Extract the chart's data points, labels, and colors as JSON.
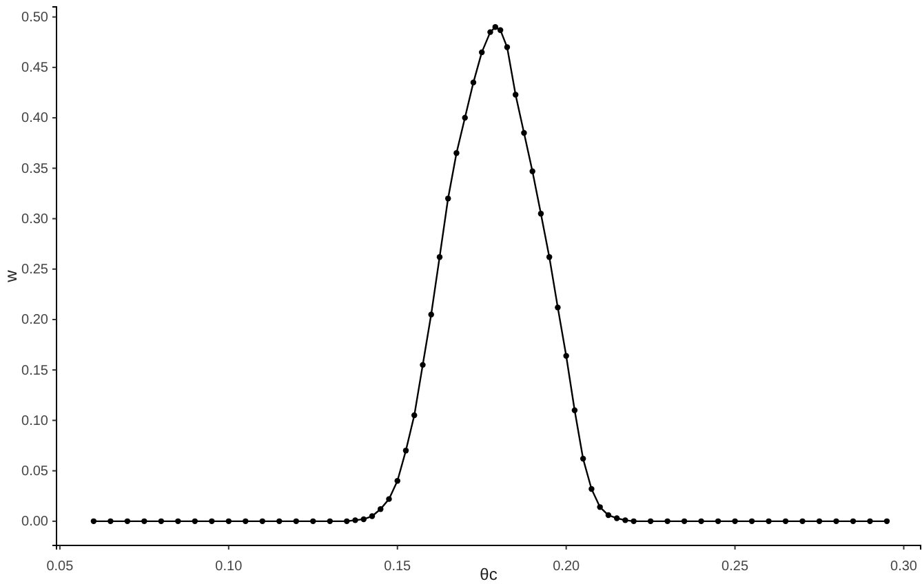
{
  "chart_data": {
    "type": "line",
    "xlabel": "θc",
    "ylabel": "w",
    "xlim": [
      0.049,
      0.305
    ],
    "ylim": [
      -0.024,
      0.51
    ],
    "xticks": [
      {
        "value": 0.05,
        "label": "0.05"
      },
      {
        "value": 0.1,
        "label": "0.10"
      },
      {
        "value": 0.15,
        "label": "0.15"
      },
      {
        "value": 0.2,
        "label": "0.20"
      },
      {
        "value": 0.25,
        "label": "0.25"
      },
      {
        "value": 0.3,
        "label": "0.30"
      }
    ],
    "yticks": [
      {
        "value": 0,
        "label": "0.00"
      },
      {
        "value": 0.05,
        "label": "0.05"
      },
      {
        "value": 0.1,
        "label": "0.10"
      },
      {
        "value": 0.15,
        "label": "0.15"
      },
      {
        "value": 0.2,
        "label": "0.20"
      },
      {
        "value": 0.25,
        "label": "0.25"
      },
      {
        "value": 0.3,
        "label": "0.30"
      },
      {
        "value": 0.35,
        "label": "0.35"
      },
      {
        "value": 0.4,
        "label": "0.40"
      },
      {
        "value": 0.45,
        "label": "0.45"
      },
      {
        "value": 0.5,
        "label": "0.50"
      }
    ],
    "grid": false,
    "marker": "circle",
    "line_style": "solid",
    "series": [
      {
        "color": "#000000",
        "x": [
          0.06,
          0.065,
          0.07,
          0.075,
          0.08,
          0.085,
          0.09,
          0.095,
          0.1,
          0.105,
          0.11,
          0.115,
          0.12,
          0.125,
          0.13,
          0.135,
          0.1375,
          0.14,
          0.1425,
          0.145,
          0.1475,
          0.15,
          0.1525,
          0.155,
          0.1575,
          0.16,
          0.1625,
          0.165,
          0.1675,
          0.17,
          0.1725,
          0.175,
          0.1775,
          0.179,
          0.1805,
          0.1825,
          0.185,
          0.1875,
          0.19,
          0.1925,
          0.195,
          0.1975,
          0.2,
          0.2025,
          0.205,
          0.2075,
          0.21,
          0.2125,
          0.215,
          0.2175,
          0.22,
          0.225,
          0.23,
          0.235,
          0.24,
          0.245,
          0.25,
          0.255,
          0.26,
          0.265,
          0.27,
          0.275,
          0.28,
          0.285,
          0.29,
          0.295
        ],
        "values": [
          0,
          0,
          0,
          0,
          0,
          0,
          0,
          0,
          0,
          0,
          0,
          0,
          0,
          0,
          0,
          0,
          0.001,
          0.002,
          0.005,
          0.012,
          0.022,
          0.04,
          0.07,
          0.105,
          0.155,
          0.205,
          0.262,
          0.32,
          0.365,
          0.4,
          0.435,
          0.465,
          0.485,
          0.49,
          0.487,
          0.47,
          0.423,
          0.385,
          0.347,
          0.305,
          0.262,
          0.212,
          0.164,
          0.11,
          0.062,
          0.032,
          0.014,
          0.006,
          0.003,
          0.001,
          0,
          0,
          0,
          0,
          0,
          0,
          0,
          0,
          0,
          0,
          0,
          0,
          0,
          0,
          0,
          0
        ]
      }
    ]
  }
}
